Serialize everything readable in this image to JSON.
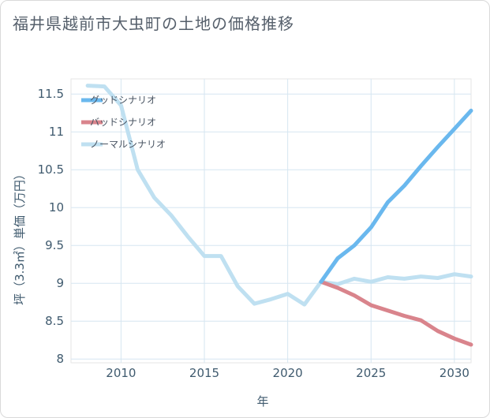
{
  "title": "福井県越前市大虫町の土地の価格推移",
  "chart_data": {
    "type": "line",
    "xlabel": "年",
    "ylabel": "坪（3.3㎡）単価（万円）",
    "xlim": [
      2007,
      2031
    ],
    "ylim": [
      7.95,
      11.7
    ],
    "xticks": [
      2010,
      2015,
      2020,
      2025,
      2030
    ],
    "yticks": [
      8,
      8.5,
      9,
      9.5,
      10,
      10.5,
      11,
      11.5
    ],
    "ytick_labels": [
      "8",
      "8.5",
      "9",
      "9.5",
      "10",
      "10.5",
      "11",
      "11.5"
    ],
    "grid": true,
    "legend_position": "top-left",
    "series": [
      {
        "name": "グッドシナリオ",
        "color": "#6ab8ee",
        "x": [
          2022,
          2023,
          2024,
          2025,
          2026,
          2027,
          2028,
          2029,
          2030,
          2031
        ],
        "y": [
          9.02,
          9.33,
          9.5,
          9.74,
          10.07,
          10.29,
          10.55,
          10.8,
          11.04,
          11.28
        ]
      },
      {
        "name": "バッドシナリオ",
        "color": "#d9848c",
        "x": [
          2022,
          2023,
          2024,
          2025,
          2026,
          2027,
          2028,
          2029,
          2030,
          2031
        ],
        "y": [
          9.02,
          8.94,
          8.84,
          8.71,
          8.64,
          8.57,
          8.51,
          8.37,
          8.27,
          8.19
        ]
      },
      {
        "name": "ノーマルシナリオ",
        "color": "#bfe0f1",
        "x": [
          2008,
          2009,
          2010,
          2011,
          2012,
          2013,
          2014,
          2015,
          2016,
          2017,
          2018,
          2019,
          2020,
          2021,
          2022,
          2023,
          2024,
          2025,
          2026,
          2027,
          2028,
          2029,
          2030,
          2031
        ],
        "y": [
          11.61,
          11.6,
          11.35,
          10.5,
          10.13,
          9.9,
          9.62,
          9.36,
          9.36,
          8.96,
          8.73,
          8.79,
          8.86,
          8.72,
          9.02,
          8.99,
          9.06,
          9.02,
          9.08,
          9.06,
          9.09,
          9.07,
          9.12,
          9.09
        ]
      }
    ]
  }
}
